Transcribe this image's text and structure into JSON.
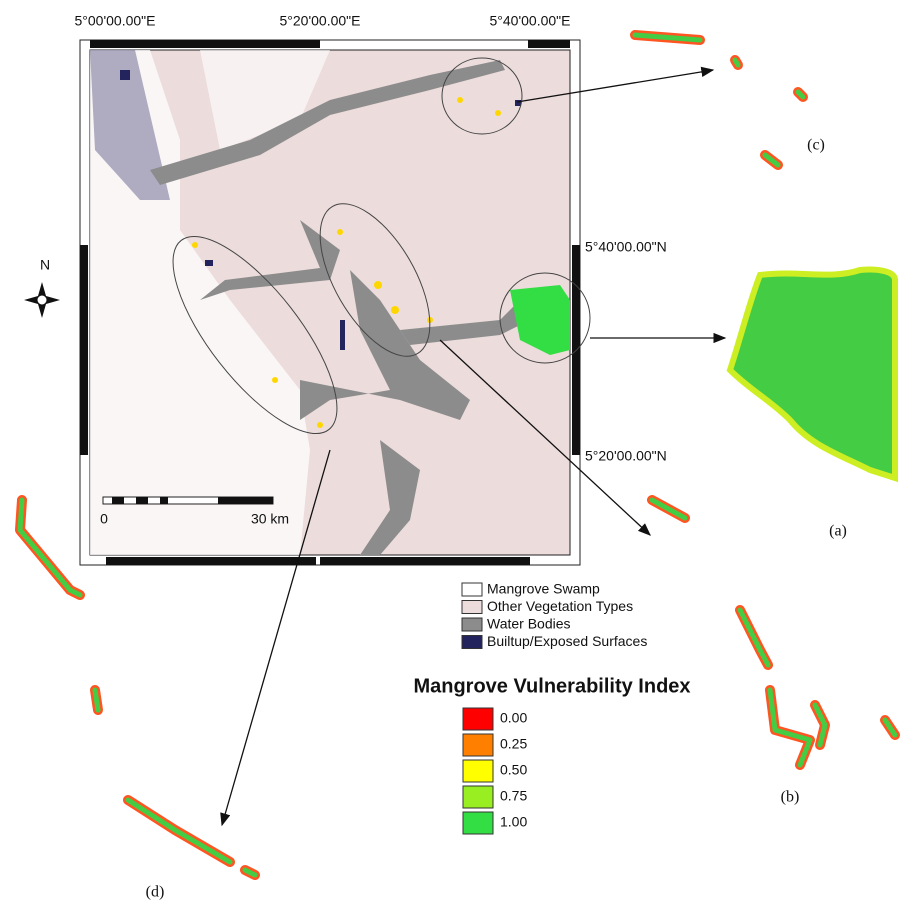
{
  "coordinates": {
    "top": [
      "5°00'00.00\"E",
      "5°20'00.00\"E",
      "5°40'00.00\"E"
    ],
    "right": [
      "5°40'00.00\"N",
      "5°20'00.00\"N"
    ]
  },
  "north_label": "N",
  "scale_bar": {
    "start": "0",
    "end": "30 km"
  },
  "land_cover_legend": [
    {
      "label": "Mangrove Swamp",
      "color": "#ffffff"
    },
    {
      "label": "Other Vegetation Types",
      "color": "#ecdcdc"
    },
    {
      "label": "Water Bodies",
      "color": "#8c8c8c"
    },
    {
      "label": "Builtup/Exposed Surfaces",
      "color": "#23235e"
    }
  ],
  "vulnerability_legend": {
    "title": "Mangrove Vulnerability Index",
    "items": [
      {
        "label": "0.00",
        "color": "#ff0000"
      },
      {
        "label": "0.25",
        "color": "#ff8000"
      },
      {
        "label": "0.50",
        "color": "#ffff00"
      },
      {
        "label": "0.75",
        "color": "#99ee22"
      },
      {
        "label": "1.00",
        "color": "#33dd44"
      }
    ]
  },
  "panels": {
    "a": "(a)",
    "b": "(b)",
    "c": "(c)",
    "d": "(d)"
  }
}
